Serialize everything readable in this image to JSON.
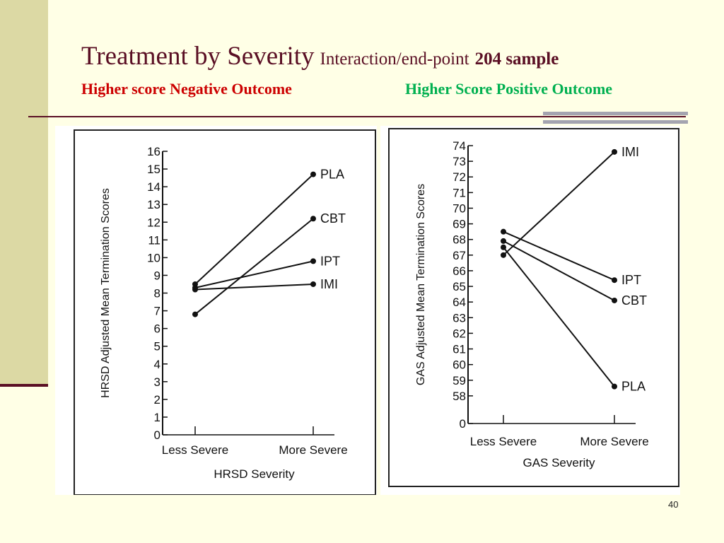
{
  "slide": {
    "title_main": "Treatment by Severity",
    "title_sub": "Interaction/end-point",
    "title_bold": "204 sample",
    "subtitle_negative": "Higher score Negative  Outcome",
    "subtitle_positive": "Higher Score Positive Outcome",
    "slide_number": "40",
    "colors": {
      "title": "#5a0f24",
      "negative": "#cc0000",
      "positive": "#00b050",
      "side_band": "#dcd9a4"
    }
  },
  "chart_data": [
    {
      "type": "line",
      "title": "",
      "xlabel": "HRSD Severity",
      "ylabel": "HRSD Adjusted Mean Termination Scores",
      "categories": [
        "Less Severe",
        "More Severe"
      ],
      "y_ticks": [
        "0",
        "1",
        "2",
        "3",
        "4",
        "5",
        "6",
        "7",
        "8",
        "9",
        "10",
        "11",
        "12",
        "13",
        "14",
        "15",
        "16"
      ],
      "ylim": [
        0,
        16
      ],
      "grid": false,
      "series": [
        {
          "name": "PLA",
          "values": [
            8.5,
            14.7
          ]
        },
        {
          "name": "CBT",
          "values": [
            6.8,
            12.2
          ]
        },
        {
          "name": "IPT",
          "values": [
            8.3,
            9.8
          ]
        },
        {
          "name": "IMI",
          "values": [
            8.2,
            8.5
          ]
        }
      ]
    },
    {
      "type": "line",
      "title": "",
      "xlabel": "GAS Severity",
      "ylabel": "GAS Adjusted Mean Termination Scores",
      "categories": [
        "Less Severe",
        "More Severe"
      ],
      "y_ticks": [
        "0",
        "58",
        "59",
        "60",
        "61",
        "62",
        "63",
        "64",
        "65",
        "66",
        "67",
        "68",
        "69",
        "70",
        "71",
        "72",
        "73",
        "74"
      ],
      "ylim": [
        57,
        74
      ],
      "axis_break": true,
      "grid": false,
      "series": [
        {
          "name": "IMI",
          "values": [
            67.0,
            73.6
          ]
        },
        {
          "name": "IPT",
          "values": [
            68.5,
            65.4
          ]
        },
        {
          "name": "CBT",
          "values": [
            67.9,
            64.1
          ]
        },
        {
          "name": "PLA",
          "values": [
            67.5,
            58.6
          ]
        }
      ]
    }
  ]
}
